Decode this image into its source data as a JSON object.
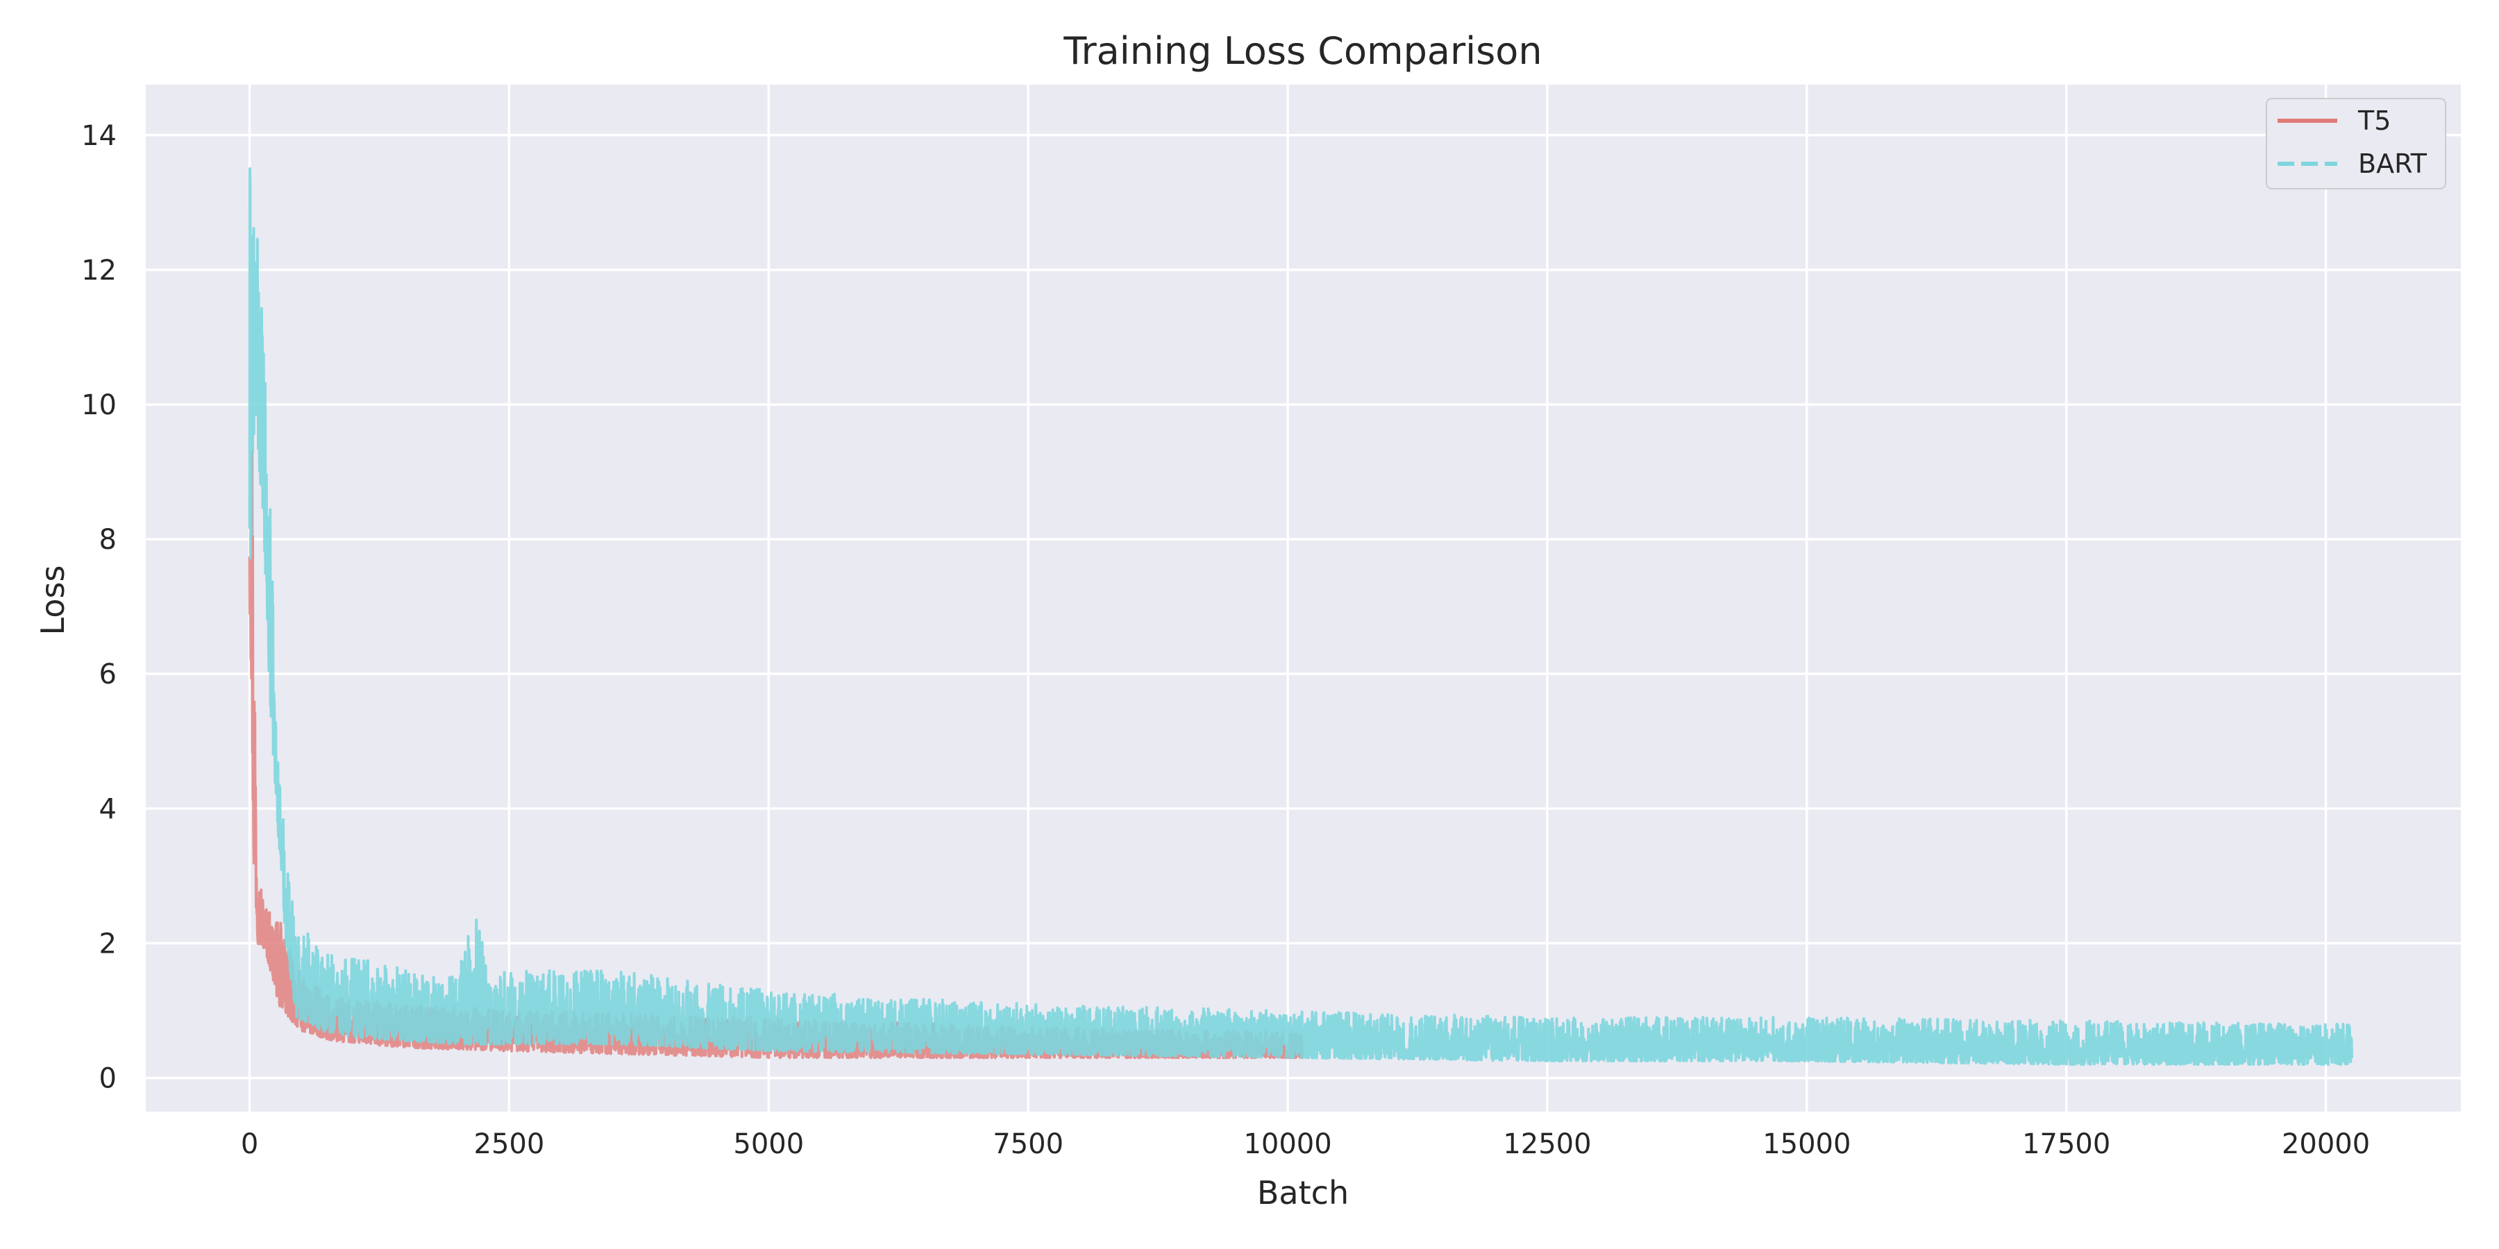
{
  "chart_data": {
    "type": "line",
    "title": "Training Loss Comparison",
    "xlabel": "Batch",
    "ylabel": "Loss",
    "xlim": [
      -1000,
      21300
    ],
    "ylim": [
      -0.5,
      14.75
    ],
    "xticks": [
      0,
      2500,
      5000,
      7500,
      10000,
      12500,
      15000,
      17500,
      20000
    ],
    "yticks": [
      0,
      2,
      4,
      6,
      8,
      10,
      12,
      14
    ],
    "grid": true,
    "legend_position": "top-right",
    "background": "#eaeaf2",
    "series": [
      {
        "name": "T5",
        "color": "#e07b77",
        "style": "solid",
        "opacity": 0.8,
        "x_range": [
          0,
          10150
        ],
        "envelope": [
          {
            "x": 0,
            "low": 7.0,
            "high": 12.9
          },
          {
            "x": 15,
            "low": 6.0,
            "high": 12.0
          },
          {
            "x": 40,
            "low": 3.0,
            "high": 8.0
          },
          {
            "x": 80,
            "low": 2.0,
            "high": 3.2
          },
          {
            "x": 150,
            "low": 1.9,
            "high": 2.6
          },
          {
            "x": 300,
            "low": 1.0,
            "high": 2.3
          },
          {
            "x": 500,
            "low": 0.7,
            "high": 1.5
          },
          {
            "x": 800,
            "low": 0.55,
            "high": 1.2
          },
          {
            "x": 1500,
            "low": 0.45,
            "high": 1.1
          },
          {
            "x": 2500,
            "low": 0.4,
            "high": 1.0
          },
          {
            "x": 5000,
            "low": 0.3,
            "high": 0.9
          },
          {
            "x": 7500,
            "low": 0.3,
            "high": 0.75
          },
          {
            "x": 10150,
            "low": 0.3,
            "high": 0.7
          }
        ]
      },
      {
        "name": "BART",
        "color": "#7dd6de",
        "style": "dashed",
        "opacity": 0.9,
        "x_range": [
          0,
          20250
        ],
        "envelope": [
          {
            "x": 0,
            "low": 7.0,
            "high": 14.0
          },
          {
            "x": 50,
            "low": 10.0,
            "high": 13.0
          },
          {
            "x": 120,
            "low": 8.5,
            "high": 11.5
          },
          {
            "x": 200,
            "low": 5.5,
            "high": 8.5
          },
          {
            "x": 260,
            "low": 4.0,
            "high": 5.0
          },
          {
            "x": 350,
            "low": 2.0,
            "high": 3.5
          },
          {
            "x": 450,
            "low": 0.9,
            "high": 2.3
          },
          {
            "x": 700,
            "low": 0.7,
            "high": 2.0
          },
          {
            "x": 1000,
            "low": 0.6,
            "high": 1.8
          },
          {
            "x": 2000,
            "low": 0.5,
            "high": 1.5
          },
          {
            "x": 2200,
            "low": 0.5,
            "high": 2.7
          },
          {
            "x": 2300,
            "low": 0.5,
            "high": 1.6
          },
          {
            "x": 3500,
            "low": 0.5,
            "high": 1.6
          },
          {
            "x": 5000,
            "low": 0.4,
            "high": 1.3
          },
          {
            "x": 7500,
            "low": 0.35,
            "high": 1.1
          },
          {
            "x": 10000,
            "low": 0.3,
            "high": 1.0
          },
          {
            "x": 12500,
            "low": 0.25,
            "high": 0.9
          },
          {
            "x": 15000,
            "low": 0.25,
            "high": 0.9
          },
          {
            "x": 17500,
            "low": 0.2,
            "high": 0.85
          },
          {
            "x": 20250,
            "low": 0.2,
            "high": 0.8
          }
        ]
      }
    ]
  }
}
